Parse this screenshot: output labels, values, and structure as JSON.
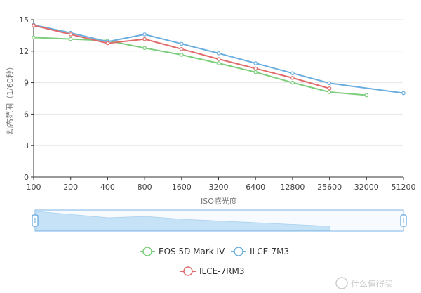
{
  "chart_data": {
    "type": "line",
    "xlabel": "ISO感光度",
    "ylabel": "动态范围（1/60秒）",
    "categories": [
      "100",
      "200",
      "400",
      "800",
      "1600",
      "3200",
      "6400",
      "12800",
      "25600",
      "32000",
      "51200"
    ],
    "ylim": [
      0,
      15
    ],
    "yticks": [
      "0",
      "3",
      "6",
      "9",
      "12",
      "15"
    ],
    "grid": true,
    "legend_position": "bottom",
    "series": [
      {
        "name": "EOS 5D Mark IV",
        "color": "#7ccd7c",
        "values": [
          13.3,
          13.15,
          13.0,
          12.3,
          11.65,
          10.85,
          10.0,
          9.0,
          8.1,
          7.8,
          null
        ]
      },
      {
        "name": "ILCE-7M3",
        "color": "#6aaee0",
        "values": [
          14.5,
          13.75,
          12.9,
          13.6,
          12.7,
          11.8,
          10.85,
          9.9,
          8.95,
          null,
          8.0
        ]
      },
      {
        "name": "ILCE-7RM3",
        "color": "#e06b6b",
        "values": [
          14.45,
          13.6,
          12.75,
          13.15,
          12.2,
          11.25,
          10.35,
          9.45,
          8.45,
          null,
          null
        ]
      }
    ]
  },
  "watermark": "值 什么值得买"
}
